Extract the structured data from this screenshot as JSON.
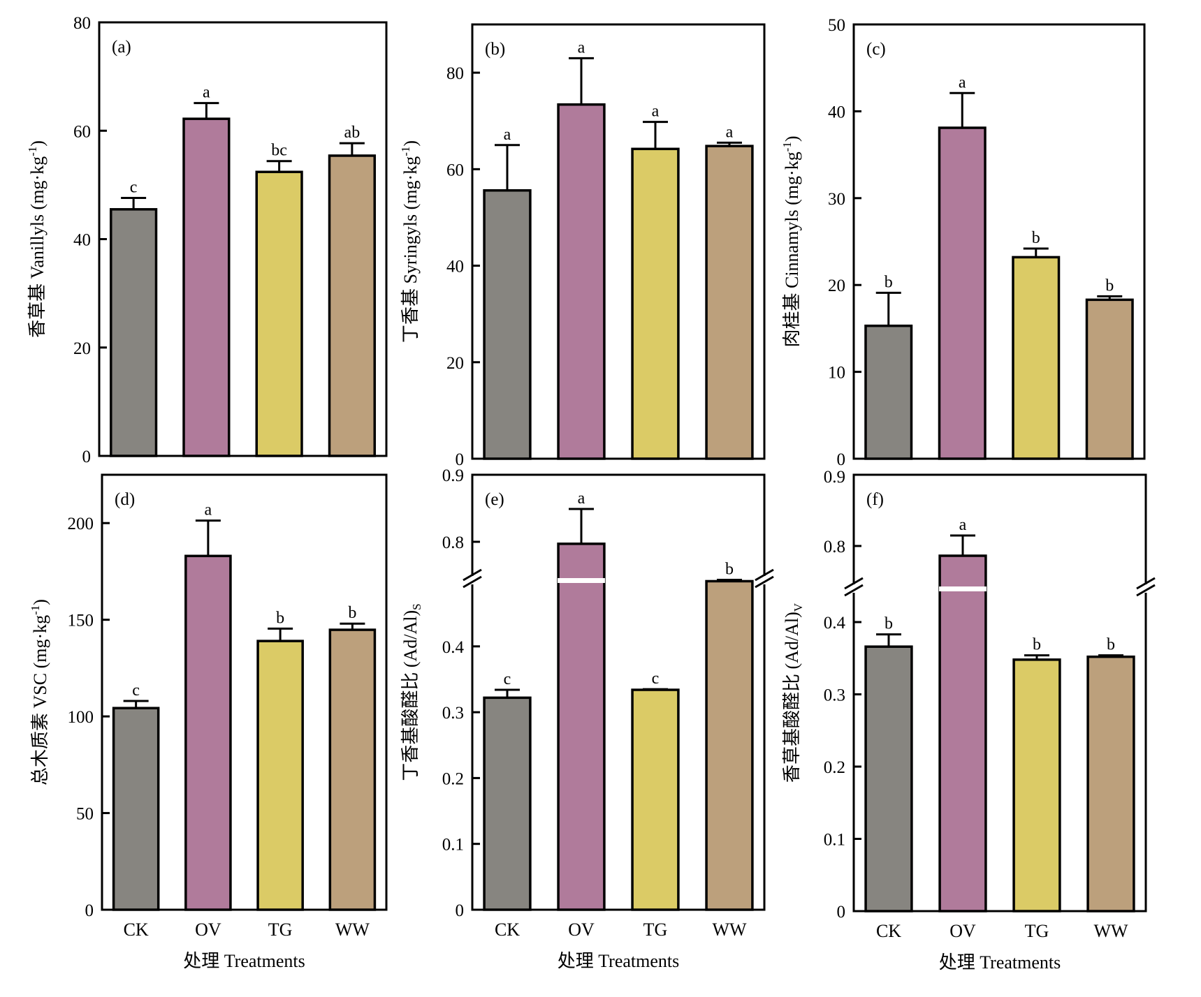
{
  "figure": {
    "xlabel": "处理 Treatments",
    "categories": [
      "CK",
      "OV",
      "TG",
      "WW"
    ],
    "colors": {
      "CK": "#878580",
      "OV": "#B07B9B",
      "TG": "#DBCB66",
      "WW": "#BCA07C"
    }
  },
  "chart_data": [
    {
      "type": "bar",
      "panel": "(a)",
      "ylabel_cn": "香草基",
      "ylabel_en": "Vanillyls (mg·kg",
      "ylabel_sup": "-1",
      "ylabel_end": ")",
      "xlabel": "",
      "categories": [
        "CK",
        "OV",
        "TG",
        "WW"
      ],
      "values": [
        45.5,
        62.2,
        52.4,
        55.4
      ],
      "errors": [
        2.1,
        2.9,
        2.0,
        2.3
      ],
      "significance": [
        "c",
        "a",
        "bc",
        "ab"
      ],
      "ylim": [
        0,
        80
      ],
      "yticks": [
        0,
        20,
        40,
        60,
        80
      ],
      "ytick_labels": [
        "0",
        "20",
        "40",
        "60",
        "80"
      ]
    },
    {
      "type": "bar",
      "panel": "(b)",
      "ylabel_cn": "丁香基",
      "ylabel_en": "Syringyls (mg·kg",
      "ylabel_sup": "-1",
      "ylabel_end": ")",
      "xlabel": "",
      "categories": [
        "CK",
        "OV",
        "TG",
        "WW"
      ],
      "values": [
        55.6,
        73.4,
        64.2,
        64.8
      ],
      "errors": [
        9.4,
        9.6,
        5.6,
        0.7
      ],
      "significance": [
        "a",
        "a",
        "a",
        "a"
      ],
      "ylim": [
        0,
        90
      ],
      "yticks": [
        0,
        20,
        40,
        60,
        80
      ],
      "ytick_labels": [
        "0",
        "20",
        "40",
        "60",
        "80"
      ]
    },
    {
      "type": "bar",
      "panel": "(c)",
      "ylabel_cn": "肉桂基",
      "ylabel_en": "Cinnamyls (mg·kg",
      "ylabel_sup": "-1",
      "ylabel_end": ")",
      "xlabel": "",
      "categories": [
        "CK",
        "OV",
        "TG",
        "WW"
      ],
      "values": [
        15.3,
        38.1,
        23.2,
        18.3
      ],
      "errors": [
        3.8,
        4.0,
        1.0,
        0.4
      ],
      "significance": [
        "b",
        "a",
        "b",
        "b"
      ],
      "ylim": [
        0,
        50
      ],
      "yticks": [
        0,
        10,
        20,
        30,
        40,
        50
      ],
      "ytick_labels": [
        "0",
        "10",
        "20",
        "30",
        "40",
        "50"
      ]
    },
    {
      "type": "bar",
      "panel": "(d)",
      "ylabel_cn": "总木质素",
      "ylabel_en": "VSC (mg·kg",
      "ylabel_sup": "-1",
      "ylabel_end": ")",
      "xlabel": "处理 Treatments",
      "categories": [
        "CK",
        "OV",
        "TG",
        "WW"
      ],
      "values": [
        104.3,
        183.0,
        139.0,
        144.8
      ],
      "errors": [
        3.7,
        18.3,
        6.4,
        3.2
      ],
      "significance": [
        "c",
        "a",
        "b",
        "b"
      ],
      "ylim": [
        0,
        225
      ],
      "yticks": [
        0,
        50,
        100,
        150,
        200
      ],
      "ytick_labels": [
        "0",
        "50",
        "100",
        "150",
        "200"
      ]
    },
    {
      "type": "bar",
      "panel": "(e)",
      "ylabel_cn": "丁香基酸醛比",
      "ylabel_en": "(Ad/Al)",
      "ylabel_sub": "S",
      "xlabel": "处理 Treatments",
      "categories": [
        "CK",
        "OV",
        "TG",
        "WW"
      ],
      "values": [
        0.322,
        0.797,
        0.334,
        0.499
      ],
      "errors": [
        0.012,
        0.052,
        0.001,
        0.002
      ],
      "significance": [
        "c",
        "a",
        "c",
        "b"
      ],
      "axis_break": {
        "lower_range": [
          0,
          0.5
        ],
        "upper_range": [
          0.75,
          0.9
        ]
      },
      "ylim": [
        0,
        0.9
      ],
      "yticks": [
        0,
        0.1,
        0.2,
        0.3,
        0.4,
        0.8,
        0.9
      ],
      "ytick_labels": [
        "0",
        "0.1",
        "0.2",
        "0.3",
        "0.4",
        "0.8",
        "0.9"
      ]
    },
    {
      "type": "bar",
      "panel": "(f)",
      "ylabel_cn": "香草基酸醛比",
      "ylabel_en": "(Ad/Al)",
      "ylabel_sub": "V",
      "xlabel": "处理 Treatments",
      "categories": [
        "CK",
        "OV",
        "TG",
        "WW"
      ],
      "values": [
        0.366,
        0.786,
        0.348,
        0.352
      ],
      "errors": [
        0.017,
        0.029,
        0.006,
        0.002
      ],
      "significance": [
        "b",
        "a",
        "b",
        "b"
      ],
      "axis_break": {
        "lower_range": [
          0,
          0.45
        ],
        "upper_range": [
          0.74,
          0.9
        ]
      },
      "ylim": [
        0,
        0.9
      ],
      "yticks": [
        0,
        0.1,
        0.2,
        0.3,
        0.4,
        0.8,
        0.9
      ],
      "ytick_labels": [
        "0",
        "0.1",
        "0.2",
        "0.3",
        "0.4",
        "0.8",
        "0.9"
      ]
    }
  ]
}
